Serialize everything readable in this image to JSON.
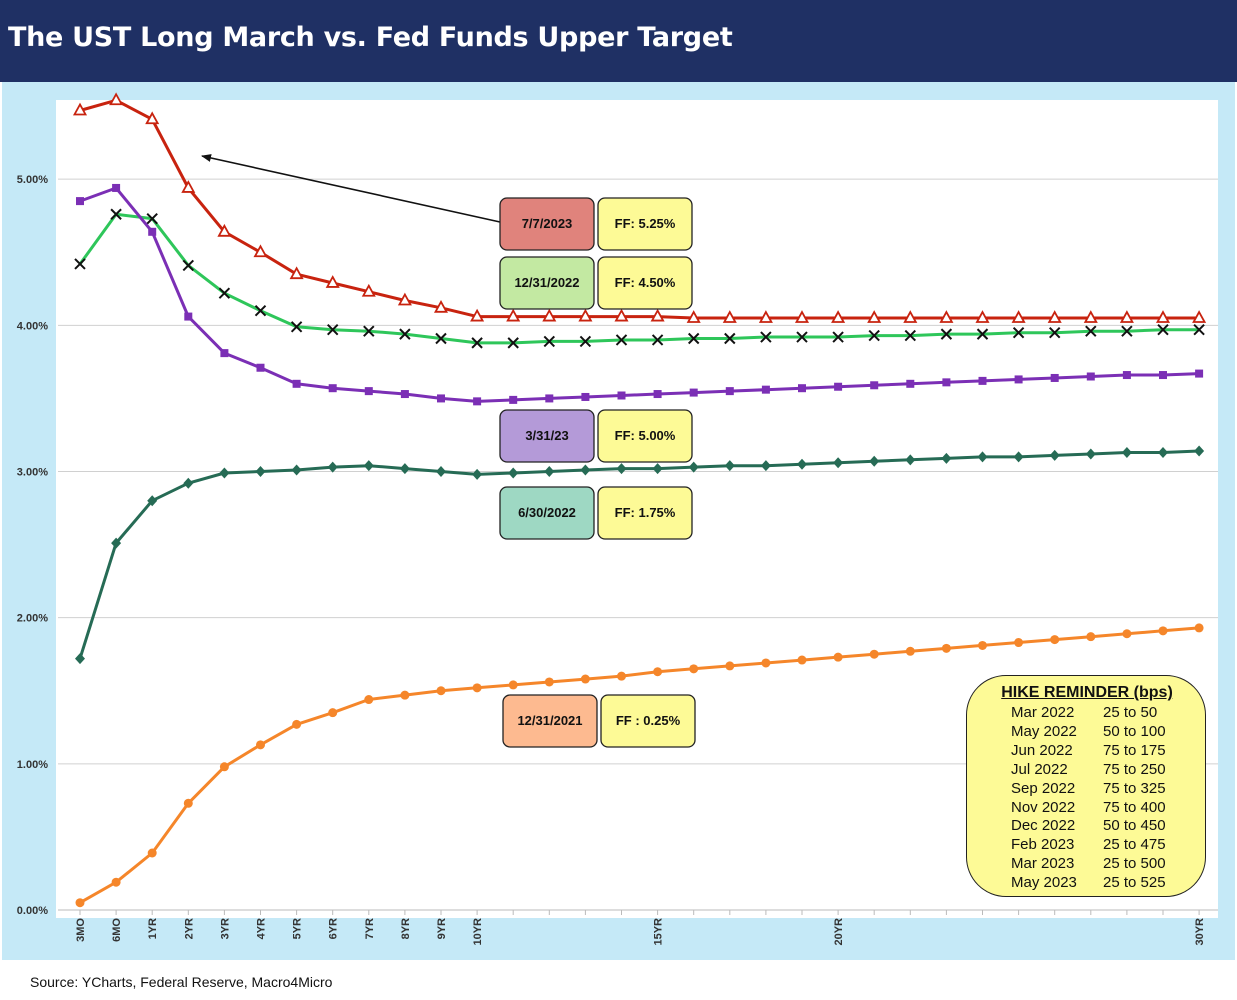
{
  "header": {
    "title": "The UST Long March vs. Fed Funds Upper Target"
  },
  "footer": {
    "source": "Source: YCharts, Federal Reserve, Macro4Micro"
  },
  "colors": {
    "header_bg": "#1f3064",
    "frame_bg": "#c5e9f7",
    "red": "#c8230f",
    "green": "#2ec65a",
    "purple": "#7b2fb5",
    "darkgreen": "#266b55",
    "orange": "#f5862a",
    "ff_box": "#fdfa96"
  },
  "chart_data": {
    "type": "line",
    "title": "The UST Long March vs. Fed Funds Upper Target",
    "ylim": [
      0,
      5.5
    ],
    "y_ticks": [
      "0.00%",
      "1.00%",
      "2.00%",
      "3.00%",
      "4.00%",
      "5.00%"
    ],
    "x_tick_labels": [
      {
        "label": "3MO",
        "x": 0.25
      },
      {
        "label": "6MO",
        "x": 0.5
      },
      {
        "label": "1YR",
        "x": 1
      },
      {
        "label": "2YR",
        "x": 2
      },
      {
        "label": "3YR",
        "x": 3
      },
      {
        "label": "4YR",
        "x": 4
      },
      {
        "label": "5YR",
        "x": 5
      },
      {
        "label": "6YR",
        "x": 6
      },
      {
        "label": "7YR",
        "x": 7
      },
      {
        "label": "8YR",
        "x": 8
      },
      {
        "label": "9YR",
        "x": 9
      },
      {
        "label": "10YR",
        "x": 10
      },
      {
        "label": "15YR",
        "x": 15
      },
      {
        "label": "20YR",
        "x": 20
      },
      {
        "label": "30YR",
        "x": 30
      }
    ],
    "x": [
      0.25,
      0.5,
      1,
      2,
      3,
      4,
      5,
      6,
      7,
      8,
      9,
      10,
      11,
      12,
      13,
      14,
      15,
      16,
      17,
      18,
      19,
      20,
      21,
      22,
      23,
      24,
      25,
      26,
      27,
      28,
      29,
      30
    ],
    "grid": "horizontal",
    "series": [
      {
        "date": "7/7/2023",
        "ff": "FF: 5.25%",
        "color": "#c8230f",
        "marker": "triangle",
        "values": [
          5.47,
          5.54,
          5.41,
          4.94,
          4.64,
          4.5,
          4.35,
          4.29,
          4.23,
          4.17,
          4.12,
          4.06,
          4.06,
          4.06,
          4.06,
          4.06,
          4.06,
          4.05,
          4.05,
          4.05,
          4.05,
          4.05,
          4.05,
          4.05,
          4.05,
          4.05,
          4.05,
          4.05,
          4.05,
          4.05,
          4.05,
          4.05
        ]
      },
      {
        "date": "12/31/2022",
        "ff": "FF: 4.50%",
        "color": "#2ec65a",
        "marker": "x",
        "values": [
          4.42,
          4.76,
          4.73,
          4.41,
          4.22,
          4.1,
          3.99,
          3.97,
          3.96,
          3.94,
          3.91,
          3.88,
          3.88,
          3.89,
          3.89,
          3.9,
          3.9,
          3.91,
          3.91,
          3.92,
          3.92,
          3.92,
          3.93,
          3.93,
          3.94,
          3.94,
          3.95,
          3.95,
          3.96,
          3.96,
          3.97,
          3.97
        ]
      },
      {
        "date": "3/31/23",
        "ff": "FF: 5.00%",
        "color": "#7b2fb5",
        "marker": "square",
        "values": [
          4.85,
          4.94,
          4.64,
          4.06,
          3.81,
          3.71,
          3.6,
          3.57,
          3.55,
          3.53,
          3.5,
          3.48,
          3.49,
          3.5,
          3.51,
          3.52,
          3.53,
          3.54,
          3.55,
          3.56,
          3.57,
          3.58,
          3.59,
          3.6,
          3.61,
          3.62,
          3.63,
          3.64,
          3.65,
          3.66,
          3.66,
          3.67
        ]
      },
      {
        "date": "6/30/2022",
        "ff": "FF: 1.75%",
        "color": "#266b55",
        "marker": "diamond",
        "values": [
          1.72,
          2.51,
          2.8,
          2.92,
          2.99,
          3.0,
          3.01,
          3.03,
          3.04,
          3.02,
          3.0,
          2.98,
          2.99,
          3.0,
          3.01,
          3.02,
          3.02,
          3.03,
          3.04,
          3.04,
          3.05,
          3.06,
          3.07,
          3.08,
          3.09,
          3.1,
          3.1,
          3.11,
          3.12,
          3.13,
          3.13,
          3.14
        ]
      },
      {
        "date": "12/31/2021",
        "ff": "FF : 0.25%",
        "color": "#f5862a",
        "marker": "circle",
        "values": [
          0.05,
          0.19,
          0.39,
          0.73,
          0.98,
          1.13,
          1.27,
          1.35,
          1.44,
          1.47,
          1.5,
          1.52,
          1.54,
          1.56,
          1.58,
          1.6,
          1.63,
          1.65,
          1.67,
          1.69,
          1.71,
          1.73,
          1.75,
          1.77,
          1.79,
          1.81,
          1.83,
          1.85,
          1.87,
          1.89,
          1.91,
          1.93
        ]
      }
    ],
    "hike_reminder": {
      "title": "HIKE REMINDER (bps)",
      "rows": [
        {
          "date": "Mar 2022",
          "change": "25 to 50"
        },
        {
          "date": "May 2022",
          "change": "50 to 100"
        },
        {
          "date": "Jun 2022",
          "change": "75 to 175"
        },
        {
          "date": "Jul 2022",
          "change": "75 to 250"
        },
        {
          "date": "Sep 2022",
          "change": "75 to 325"
        },
        {
          "date": "Nov 2022",
          "change": "75 to 400"
        },
        {
          "date": "Dec 2022",
          "change": "50 to 450"
        },
        {
          "date": "Feb 2023",
          "change": "25 to 475"
        },
        {
          "date": "Mar 2023",
          "change": "25 to 500"
        },
        {
          "date": "May 2023",
          "change": "25 to 525"
        }
      ]
    }
  }
}
